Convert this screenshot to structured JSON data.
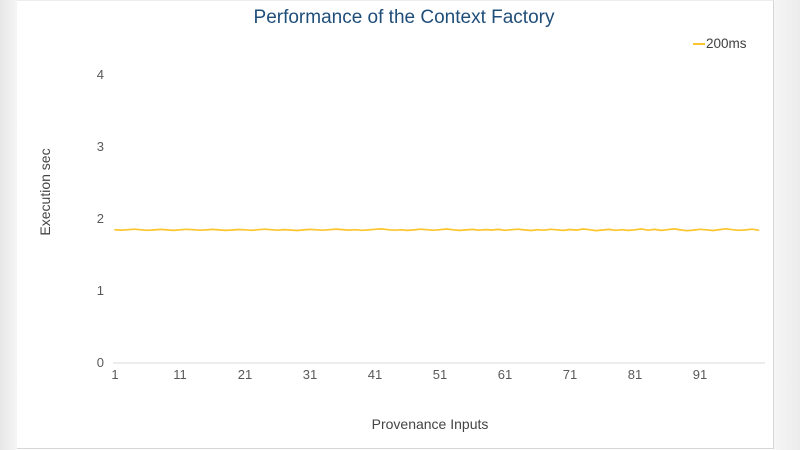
{
  "colors": {
    "title": "#1f4e79",
    "axis_text": "#595959",
    "axis_title": "#444444",
    "axis_line": "#d9d9d9",
    "line": "#fdc52d"
  },
  "chart_data": {
    "type": "line",
    "title": "Performance of the Context Factory",
    "xlabel": "Provenance Inputs",
    "ylabel": "Execution sec",
    "x_ticks": [
      1,
      11,
      21,
      31,
      41,
      51,
      61,
      71,
      81,
      91
    ],
    "y_ticks": [
      0,
      1,
      2,
      3,
      4
    ],
    "xlim": [
      1,
      100
    ],
    "ylim": [
      0,
      4
    ],
    "grid": false,
    "legend_position": "top-right",
    "series": [
      {
        "name": "200ms",
        "color": "#fdc52d",
        "x_start": 1,
        "x_step": 1,
        "values": [
          1.85,
          1.846,
          1.852,
          1.858,
          1.85,
          1.843,
          1.848,
          1.855,
          1.849,
          1.842,
          1.85,
          1.857,
          1.851,
          1.844,
          1.849,
          1.856,
          1.848,
          1.841,
          1.847,
          1.854,
          1.85,
          1.843,
          1.852,
          1.859,
          1.851,
          1.845,
          1.853,
          1.847,
          1.84,
          1.849,
          1.856,
          1.85,
          1.844,
          1.851,
          1.86,
          1.853,
          1.846,
          1.852,
          1.843,
          1.848,
          1.857,
          1.862,
          1.852,
          1.845,
          1.85,
          1.841,
          1.849,
          1.858,
          1.851,
          1.844,
          1.852,
          1.861,
          1.85,
          1.842,
          1.848,
          1.856,
          1.845,
          1.853,
          1.847,
          1.855,
          1.843,
          1.851,
          1.859,
          1.848,
          1.84,
          1.852,
          1.844,
          1.857,
          1.85,
          1.842,
          1.854,
          1.846,
          1.861,
          1.851,
          1.839,
          1.847,
          1.856,
          1.843,
          1.852,
          1.841,
          1.85,
          1.862,
          1.845,
          1.855,
          1.842,
          1.851,
          1.863,
          1.849,
          1.838,
          1.846,
          1.857,
          1.85,
          1.84,
          1.853,
          1.864,
          1.852,
          1.843,
          1.849,
          1.858,
          1.845
        ]
      }
    ]
  }
}
